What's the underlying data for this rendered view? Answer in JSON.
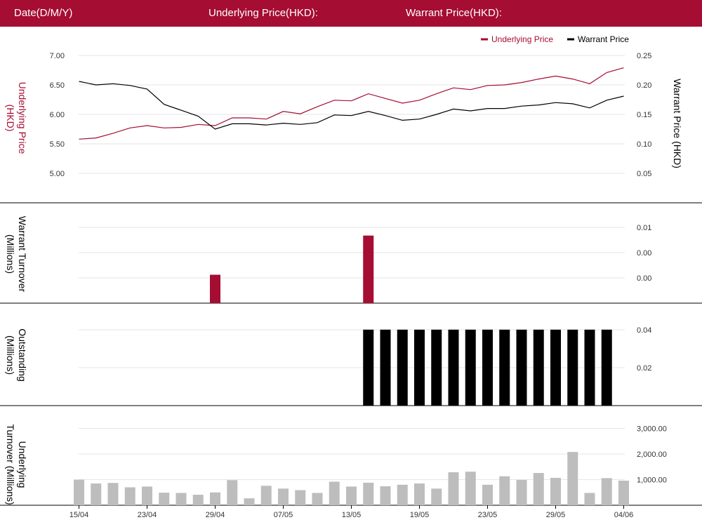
{
  "header": {
    "date_label": "Date(D/M/Y)",
    "underlying_label": "Underlying Price(HKD):",
    "warrant_label": "Warrant Price(HKD):"
  },
  "colors": {
    "underlying": "#a50d33",
    "warrant": "#000000",
    "turnover_bar": "#a50d33",
    "outstanding_bar": "#000000",
    "underlying_turnover_bar": "#bdbdbd",
    "grid": "#e6e6e6"
  },
  "chart_data": [
    {
      "type": "line",
      "legend": [
        "Underlying Price",
        "Warrant Price"
      ],
      "legend_position": "top-right",
      "ylabel_left": "Underlying Price (HKD)",
      "ylabel_right": "Warrant  Price (HKD)",
      "y_left_ticks": [
        "5.00",
        "5.50",
        "6.00",
        "6.50",
        "7.00"
      ],
      "y_right_ticks": [
        "0.05",
        "0.10",
        "0.15",
        "0.20",
        "0.25"
      ],
      "ylim_left": [
        5.0,
        7.0
      ],
      "ylim_right": [
        0.05,
        0.25
      ],
      "series": [
        {
          "name": "Underlying Price",
          "values": [
            5.58,
            5.6,
            5.68,
            5.77,
            5.81,
            5.77,
            5.78,
            5.83,
            5.81,
            5.94,
            5.94,
            5.92,
            6.05,
            6.01,
            6.13,
            6.24,
            6.23,
            6.35,
            6.27,
            6.19,
            6.24,
            6.35,
            6.45,
            6.42,
            6.49,
            6.5,
            6.54,
            6.6,
            6.65,
            6.6,
            6.52,
            6.71,
            6.79
          ]
        },
        {
          "name": "Warrant Price",
          "values": [
            0.206,
            0.2,
            0.202,
            0.199,
            0.193,
            0.167,
            0.157,
            0.147,
            0.125,
            0.134,
            0.134,
            0.132,
            0.135,
            0.133,
            0.136,
            0.149,
            0.148,
            0.155,
            0.148,
            0.14,
            0.142,
            0.15,
            0.159,
            0.156,
            0.16,
            0.16,
            0.164,
            0.166,
            0.17,
            0.168,
            0.161,
            0.174,
            0.181
          ]
        }
      ]
    },
    {
      "type": "bar",
      "ylabel": "Warrant  Turnover (Millions)",
      "y_ticks": [
        "0.00",
        "0.00",
        "0.01"
      ],
      "ylim": [
        0,
        0.012
      ],
      "values": [
        0,
        0,
        0,
        0,
        0,
        0,
        0,
        0,
        0.0045,
        0,
        0,
        0,
        0,
        0,
        0,
        0,
        0,
        0.0107,
        0,
        0,
        0,
        0,
        0,
        0,
        0,
        0,
        0,
        0,
        0,
        0,
        0,
        0,
        0
      ]
    },
    {
      "type": "bar",
      "ylabel": "Outstanding (Millions)",
      "y_ticks": [
        "0.02",
        "0.04"
      ],
      "ylim": [
        0,
        0.0462
      ],
      "values": [
        0,
        0,
        0,
        0,
        0,
        0,
        0,
        0,
        0,
        0,
        0,
        0,
        0,
        0,
        0,
        0,
        0,
        0.04,
        0.04,
        0.04,
        0.04,
        0.04,
        0.04,
        0.04,
        0.04,
        0.04,
        0.04,
        0.04,
        0.04,
        0.04,
        0.04,
        0.04,
        0
      ]
    },
    {
      "type": "bar",
      "ylabel": "Underlying Turnover (Millions)",
      "y_ticks": [
        "1,000.00",
        "2,000.00",
        "3,000.00"
      ],
      "ylim": [
        0,
        3000
      ],
      "values": [
        1000,
        850,
        870,
        700,
        730,
        490,
        480,
        410,
        500,
        980,
        270,
        760,
        650,
        590,
        480,
        920,
        730,
        880,
        740,
        800,
        850,
        650,
        1290,
        1310,
        800,
        1130,
        990,
        1260,
        1070,
        2080,
        480,
        1060,
        960
      ],
      "x_tick_labels": [
        "15/04",
        "23/04",
        "29/04",
        "07/05",
        "13/05",
        "19/05",
        "23/05",
        "29/05",
        "04/06"
      ],
      "x_tick_index": [
        0,
        4,
        8,
        12,
        16,
        20,
        24,
        28,
        32
      ]
    }
  ]
}
